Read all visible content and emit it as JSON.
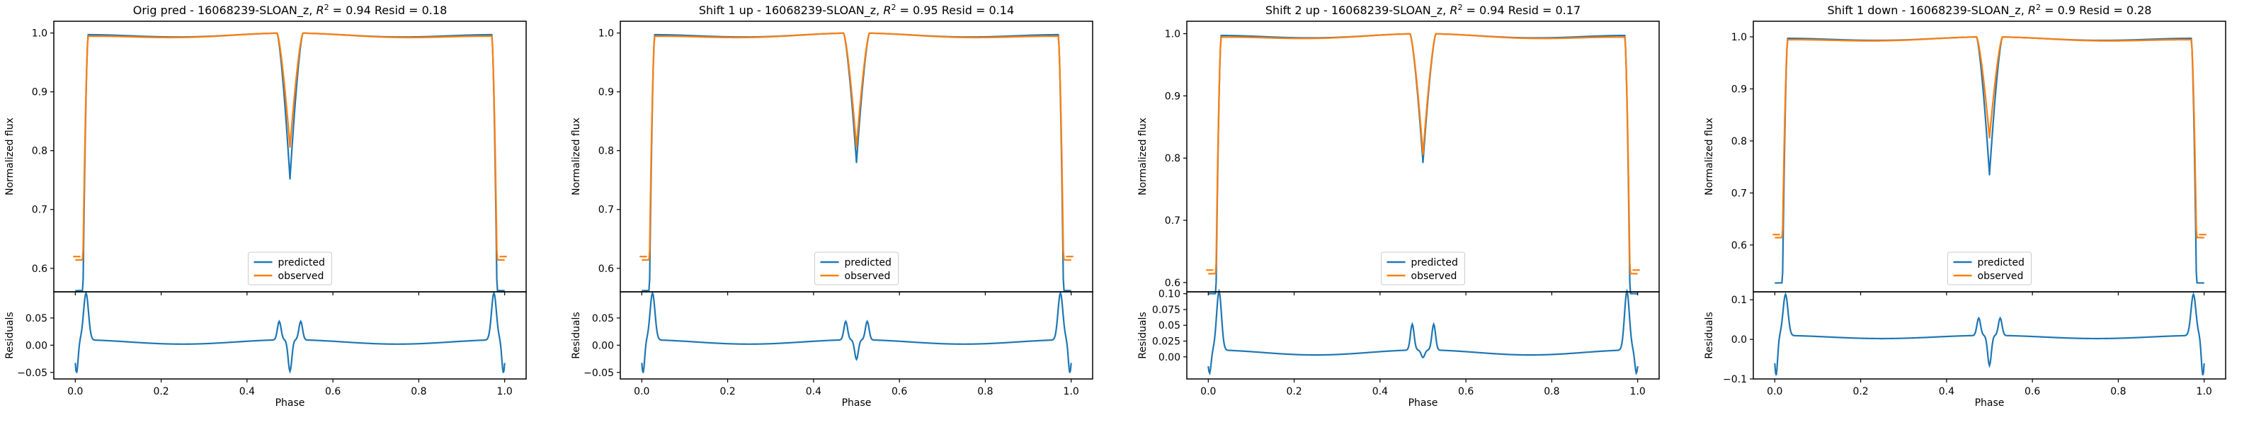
{
  "figure": {
    "legend_location": "lower center",
    "x_tick_labels": [
      "0.0",
      "0.2",
      "0.4",
      "0.6",
      "0.8",
      "1.0"
    ],
    "colors": {
      "predicted": "#1f77b4",
      "observed": "#ff7f0e"
    }
  },
  "chart_data": [
    {
      "type": "line",
      "title": "Orig pred - 16068239-SLOAN_z, R² = 0.94 Resid = 0.18",
      "title_parts": {
        "prefix": "Orig pred - 16068239-SLOAN_z, ",
        "r2_symbol": "R",
        "r2_sup": "2",
        "r2_value": " = 0.94 Resid = 0.18"
      },
      "top": {
        "ylabel": "Normalized flux",
        "ylim": [
          0.56,
          1.02
        ],
        "yticks": [
          0.6,
          0.7,
          0.8,
          0.9,
          1.0
        ],
        "ytick_labels": [
          "0.6",
          "0.7",
          "0.8",
          "0.9",
          "1.0"
        ],
        "series": [
          {
            "name": "predicted",
            "color": "#1f77b4",
            "ingress_depth": 0.565,
            "eclipse_min": 0.752,
            "edge_tilt": 0.006
          },
          {
            "name": "observed",
            "color": "#ff7f0e",
            "ingress_depth": 0.62,
            "eclipse_min": 0.806,
            "edge_tilt": 0.012
          }
        ]
      },
      "bottom": {
        "ylabel": "Residuals",
        "ylim": [
          -0.062,
          0.098
        ],
        "yticks": [
          -0.05,
          0.0,
          0.05
        ],
        "ytick_labels": [
          "−0.05",
          "0.00",
          "0.05"
        ],
        "residual_peak": 0.092,
        "residual_dip": -0.055,
        "mid_peak": 0.04,
        "mid_dip": -0.052,
        "baseline": 0.006
      },
      "xlabel": "Phase",
      "xlim": [
        -0.05,
        1.05
      ],
      "legend": [
        "predicted",
        "observed"
      ]
    },
    {
      "type": "line",
      "title": "Shift 1 up - 16068239-SLOAN_z, R² = 0.95 Resid = 0.14",
      "title_parts": {
        "prefix": "Shift 1 up - 16068239-SLOAN_z, ",
        "r2_symbol": "R",
        "r2_sup": "2",
        "r2_value": " = 0.95 Resid = 0.14"
      },
      "top": {
        "ylabel": "Normalized flux",
        "ylim": [
          0.56,
          1.02
        ],
        "yticks": [
          0.6,
          0.7,
          0.8,
          0.9,
          1.0
        ],
        "ytick_labels": [
          "0.6",
          "0.7",
          "0.8",
          "0.9",
          "1.0"
        ],
        "series": [
          {
            "name": "predicted",
            "color": "#1f77b4",
            "ingress_depth": 0.565,
            "eclipse_min": 0.78,
            "edge_tilt": 0.006
          },
          {
            "name": "observed",
            "color": "#ff7f0e",
            "ingress_depth": 0.62,
            "eclipse_min": 0.806,
            "edge_tilt": 0.012
          }
        ]
      },
      "bottom": {
        "ylabel": "Residuals",
        "ylim": [
          -0.062,
          0.098
        ],
        "yticks": [
          -0.05,
          0.0,
          0.05
        ],
        "ytick_labels": [
          "−0.05",
          "0.00",
          "0.05"
        ],
        "residual_peak": 0.092,
        "residual_dip": -0.055,
        "mid_peak": 0.04,
        "mid_dip": -0.03,
        "baseline": 0.006
      },
      "xlabel": "Phase",
      "xlim": [
        -0.05,
        1.05
      ],
      "legend": [
        "predicted",
        "observed"
      ]
    },
    {
      "type": "line",
      "title": "Shift 2 up - 16068239-SLOAN_z, R² = 0.94 Resid = 0.17",
      "title_parts": {
        "prefix": "Shift 2 up - 16068239-SLOAN_z, ",
        "r2_symbol": "R",
        "r2_sup": "2",
        "r2_value": " = 0.94 Resid = 0.17"
      },
      "top": {
        "ylabel": "Normalized flux",
        "ylim": [
          0.585,
          1.02
        ],
        "yticks": [
          0.6,
          0.7,
          0.8,
          0.9,
          1.0
        ],
        "ytick_labels": [
          "0.6",
          "0.7",
          "0.8",
          "0.9",
          "1.0"
        ],
        "series": [
          {
            "name": "predicted",
            "color": "#1f77b4",
            "ingress_depth": 0.585,
            "eclipse_min": 0.793,
            "edge_tilt": 0.006
          },
          {
            "name": "observed",
            "color": "#ff7f0e",
            "ingress_depth": 0.62,
            "eclipse_min": 0.806,
            "edge_tilt": 0.012
          }
        ]
      },
      "bottom": {
        "ylabel": "Residuals",
        "ylim": [
          -0.035,
          0.103
        ],
        "yticks": [
          0.0,
          0.025,
          0.05,
          0.075,
          0.1
        ],
        "ytick_labels": [
          "0.00",
          "0.025",
          "0.05",
          "0.075",
          "0.10"
        ],
        "residual_peak": 0.1,
        "residual_dip": -0.03,
        "mid_peak": 0.048,
        "mid_dip": -0.005,
        "baseline": 0.007
      },
      "xlabel": "Phase",
      "xlim": [
        -0.05,
        1.05
      ],
      "legend": [
        "predicted",
        "observed"
      ]
    },
    {
      "type": "line",
      "title": "Shift 1 down - 16068239-SLOAN_z, R² = 0.9 Resid = 0.28",
      "title_parts": {
        "prefix": "Shift 1 down - 16068239-SLOAN_z, ",
        "r2_symbol": "R",
        "r2_sup": "2",
        "r2_value": " = 0.9 Resid = 0.28"
      },
      "top": {
        "ylabel": "Normalized flux",
        "ylim": [
          0.51,
          1.03
        ],
        "yticks": [
          0.6,
          0.7,
          0.8,
          0.9,
          1.0
        ],
        "ytick_labels": [
          "0.6",
          "0.7",
          "0.8",
          "0.9",
          "1.0"
        ],
        "series": [
          {
            "name": "predicted",
            "color": "#1f77b4",
            "ingress_depth": 0.53,
            "eclipse_min": 0.735,
            "edge_tilt": 0.006
          },
          {
            "name": "observed",
            "color": "#ff7f0e",
            "ingress_depth": 0.62,
            "eclipse_min": 0.806,
            "edge_tilt": 0.012
          }
        ]
      },
      "bottom": {
        "ylabel": "Residuals",
        "ylim": [
          -0.1,
          0.12
        ],
        "yticks": [
          -0.1,
          0.0,
          0.1
        ],
        "ytick_labels": [
          "−0.1",
          "0.0",
          "0.1"
        ],
        "residual_peak": 0.11,
        "residual_dip": -0.095,
        "mid_peak": 0.05,
        "mid_dip": -0.07,
        "baseline": 0.006
      },
      "xlabel": "Phase",
      "xlim": [
        -0.05,
        1.05
      ],
      "legend": [
        "predicted",
        "observed"
      ]
    }
  ]
}
